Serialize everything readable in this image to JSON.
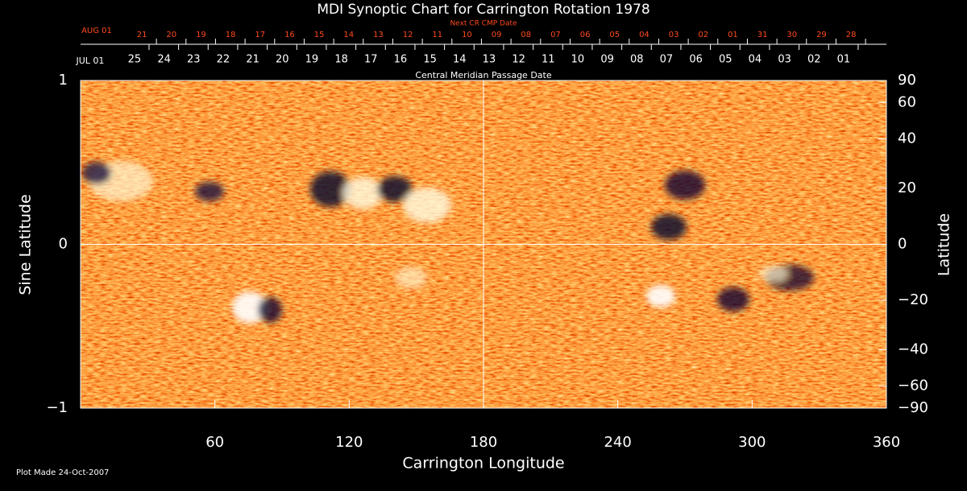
{
  "chart_data": {
    "type": "synoptic-map",
    "title": "MDI Synoptic Chart for Carrington Rotation 1978",
    "xlabel": "Carrington Longitude",
    "ylabel": "Sine Latitude",
    "y2label": "Latitude",
    "xlim": [
      0,
      360
    ],
    "xticks": [
      60,
      120,
      180,
      240,
      300,
      360
    ],
    "ylim": [
      -1,
      1
    ],
    "yticks": [
      {
        "value": -1,
        "label": "−1"
      },
      0,
      1
    ],
    "y2scale": "sine",
    "y2lim": [
      -90,
      90
    ],
    "y2ticks": [
      {
        "value": -90,
        "label": "−90"
      },
      {
        "value": -60,
        "label": "−60"
      },
      {
        "value": -40,
        "label": "−40"
      },
      {
        "value": -20,
        "label": "−20"
      },
      0,
      20,
      40,
      60,
      90
    ],
    "grid_lines": {
      "x": [
        180
      ],
      "y": [
        0
      ]
    },
    "cmp_axis": {
      "title": "Central Meridian Passage Date",
      "start_label": "JUL 01",
      "start_position": 4.3,
      "labels": [
        "25",
        "24",
        "23",
        "22",
        "21",
        "20",
        "19",
        "18",
        "17",
        "16",
        "15",
        "14",
        "13",
        "12",
        "11",
        "10",
        "09",
        "08",
        "07",
        "06",
        "05",
        "04",
        "03",
        "02",
        "01"
      ],
      "positions": [
        24.1,
        37.3,
        50.5,
        63.7,
        76.9,
        90.1,
        103.3,
        116.5,
        129.7,
        142.9,
        156.1,
        169.3,
        182.5,
        195.7,
        208.9,
        222.1,
        235.3,
        248.5,
        261.7,
        274.9,
        288.1,
        301.3,
        314.5,
        327.7,
        340.9
      ]
    },
    "next_cmp_axis": {
      "title": "Next CR CMP Date",
      "color": "#ff4a1c",
      "start_label": "AUG 01",
      "start_position": 7.2,
      "labels": [
        "21",
        "20",
        "19",
        "18",
        "17",
        "16",
        "15",
        "14",
        "13",
        "12",
        "11",
        "10",
        "09",
        "08",
        "07",
        "06",
        "05",
        "04",
        "03",
        "02",
        "01",
        "31",
        "30",
        "29",
        "28"
      ],
      "positions": [
        27.4,
        40.6,
        53.8,
        67.0,
        80.2,
        93.4,
        106.6,
        119.8,
        133.0,
        146.2,
        159.4,
        172.6,
        185.8,
        199.0,
        212.2,
        225.4,
        238.6,
        251.8,
        265.0,
        278.2,
        291.4,
        304.6,
        317.8,
        331.0,
        344.2
      ]
    },
    "footer": "Plot Made 24-Oct-2007"
  }
}
